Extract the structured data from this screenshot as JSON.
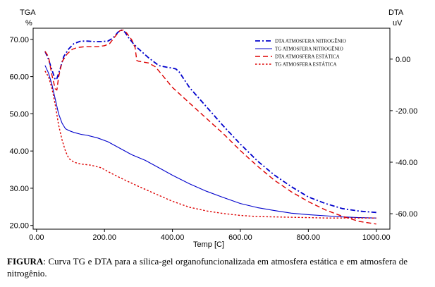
{
  "chart_data": {
    "type": "line",
    "xlabel": "Temp  [C]",
    "left_axis": {
      "label_top": "TGA",
      "unit": "%",
      "ylim": [
        19,
        73
      ],
      "ticks": [
        "20.00",
        "30.00",
        "40.00",
        "50.00",
        "60.00",
        "70.00"
      ],
      "tick_values": [
        20,
        30,
        40,
        50,
        60,
        70
      ]
    },
    "right_axis": {
      "label_top": "DTA",
      "unit": "uV",
      "ylim": [
        -66,
        12
      ],
      "ticks": [
        "0.00",
        "-20.00",
        "-40.00",
        "-60.00"
      ],
      "tick_values": [
        0,
        -20,
        -40,
        -60
      ]
    },
    "xlim": [
      -10,
      1040
    ],
    "xticks": [
      "0.00",
      "200.00",
      "400.00",
      "600.00",
      "800.00",
      "1000.00"
    ],
    "xtick_values": [
      0,
      200,
      400,
      600,
      800,
      1000
    ],
    "grid": false,
    "legend_position": "top-right",
    "series": [
      {
        "name": "DTA ATMOSFERA NITROGÊNIO",
        "axis": "right",
        "color": "#0000cc",
        "dash": "7,3,2,3",
        "width": 1.8,
        "x": [
          25,
          35,
          45,
          55,
          60,
          70,
          80,
          95,
          110,
          130,
          150,
          170,
          190,
          210,
          225,
          240,
          250,
          260,
          270,
          285,
          300,
          330,
          360,
          390,
          400,
          410,
          420,
          450,
          500,
          550,
          600,
          650,
          700,
          750,
          800,
          850,
          900,
          950,
          1000
        ],
        "y": [
          3,
          0,
          -4,
          -8,
          -7.5,
          -3.5,
          1,
          4,
          6,
          7,
          7,
          6.8,
          6.8,
          7,
          8.2,
          10.5,
          11.3,
          10.5,
          8.5,
          6,
          4,
          0.5,
          -2.5,
          -3.3,
          -3.5,
          -3.8,
          -5,
          -11,
          -18.5,
          -26,
          -33,
          -39.5,
          -45,
          -49.5,
          -53.5,
          -56,
          -58,
          -59,
          -59.5
        ]
      },
      {
        "name": "TG ATMOSFERA NITROGÊNIO",
        "axis": "left",
        "color": "#0000cc",
        "dash": "",
        "width": 1.1,
        "x": [
          25,
          35,
          45,
          55,
          65,
          75,
          85,
          95,
          110,
          130,
          150,
          180,
          210,
          240,
          280,
          320,
          360,
          400,
          450,
          500,
          550,
          600,
          650,
          700,
          750,
          800,
          850,
          900,
          950,
          1000
        ],
        "y": [
          63,
          61,
          58,
          54,
          50,
          47.5,
          46,
          45.5,
          45,
          44.5,
          44.2,
          43.5,
          42.5,
          41,
          39,
          37.5,
          35.5,
          33.5,
          31.2,
          29.2,
          27.5,
          25.9,
          24.8,
          24,
          23.3,
          22.9,
          22.6,
          22.3,
          22.1,
          22.0
        ]
      },
      {
        "name": "DTA ATMOSFERA ESTÁTICA",
        "axis": "right",
        "color": "#dd0000",
        "dash": "7,4",
        "width": 1.4,
        "x": [
          25,
          35,
          45,
          55,
          60,
          65,
          75,
          90,
          105,
          120,
          140,
          160,
          180,
          200,
          215,
          230,
          245,
          255,
          265,
          280,
          290,
          295,
          300,
          330,
          350,
          400,
          450,
          500,
          550,
          600,
          650,
          700,
          750,
          800,
          850,
          900,
          950,
          1000
        ],
        "y": [
          3,
          1,
          -6,
          -11.5,
          -12,
          -7,
          -1,
          2,
          3.8,
          4.5,
          4.8,
          4.8,
          4.8,
          5.2,
          6,
          8.6,
          11,
          11.3,
          10.2,
          7.5,
          4.5,
          -0.5,
          -0.8,
          -1.5,
          -3,
          -11,
          -17,
          -23,
          -29,
          -35.5,
          -41.5,
          -47,
          -51.5,
          -55.3,
          -58.5,
          -61,
          -63,
          -64
        ]
      },
      {
        "name": "TG ATMOSFERA ESTÁTICA",
        "axis": "left",
        "color": "#dd0000",
        "dash": "2.5,2.5",
        "width": 1.4,
        "x": [
          25,
          35,
          45,
          55,
          65,
          75,
          85,
          95,
          110,
          130,
          160,
          190,
          220,
          260,
          300,
          350,
          400,
          450,
          500,
          550,
          600,
          650,
          700,
          750,
          800,
          850,
          900,
          950,
          1000
        ],
        "y": [
          61.5,
          60,
          57,
          52.5,
          47,
          43,
          40,
          38,
          37,
          36.5,
          36.2,
          35.5,
          34,
          32.2,
          30.5,
          28.5,
          26.5,
          24.9,
          23.9,
          23.2,
          22.7,
          22.4,
          22.3,
          22.2,
          22.1,
          22.0,
          22.0,
          22.0,
          22.0
        ]
      }
    ]
  },
  "caption": {
    "label": "FIGURA",
    "text": ": Curva TG e DTA para a sílica-gel organofuncionalizada em atmosfera estática e em atmosfera de nitrogênio."
  }
}
